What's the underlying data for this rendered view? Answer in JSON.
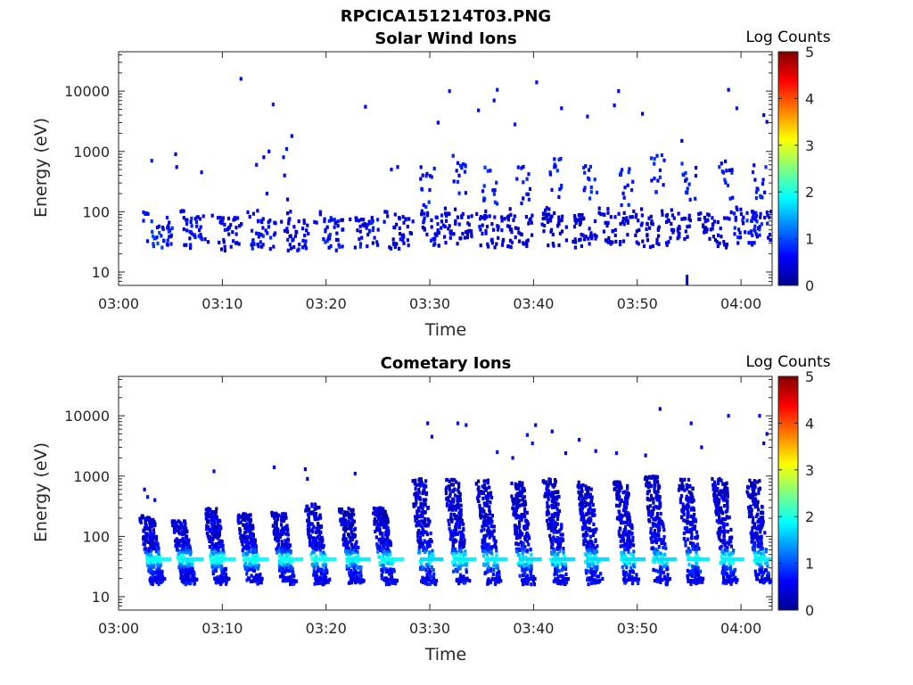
{
  "figure_title": "RPCICA151214T03.PNG",
  "chart_data": [
    {
      "type": "heatmap",
      "title": "Solar Wind Ions",
      "xlabel": "Time",
      "ylabel": "Energy (eV)",
      "x_ticks": [
        "03:00",
        "03:10",
        "03:20",
        "03:30",
        "03:40",
        "03:50",
        "04:00"
      ],
      "x_tick_minutes": [
        0,
        10,
        20,
        30,
        40,
        50,
        60
      ],
      "xlim_minutes": [
        0,
        63
      ],
      "y_scale": "log",
      "ylim": [
        6,
        45000
      ],
      "y_ticks": [
        "10",
        "100",
        "1000",
        "10000"
      ],
      "y_tick_values": [
        10,
        100,
        1000,
        10000
      ],
      "colorbar": {
        "label": "Log Counts",
        "range": [
          0,
          5
        ],
        "ticks": [
          "0",
          "1",
          "2",
          "3",
          "4",
          "5"
        ],
        "colormap": "jet"
      },
      "bursts": [
        {
          "t": 3.5,
          "e": 40,
          "l": 1.0
        },
        {
          "t": 7.0,
          "e": 42,
          "l": 0.8
        },
        {
          "t": 10.2,
          "e": 40,
          "l": 0.7
        },
        {
          "t": 13.5,
          "e": 42,
          "l": 0.8
        },
        {
          "t": 16.7,
          "e": 40,
          "l": 0.7
        },
        {
          "t": 20.0,
          "e": 40,
          "l": 0.8
        },
        {
          "t": 23.5,
          "e": 45,
          "l": 0.8
        },
        {
          "t": 26.8,
          "e": 42,
          "l": 0.7
        },
        {
          "t": 30.0,
          "e": 45,
          "l": 0.7
        },
        {
          "t": 32.5,
          "e": 48,
          "l": 0.6
        },
        {
          "t": 35.5,
          "e": 45,
          "l": 0.7
        },
        {
          "t": 38.2,
          "e": 45,
          "l": 0.6
        },
        {
          "t": 41.5,
          "e": 48,
          "l": 0.6
        },
        {
          "t": 44.5,
          "e": 45,
          "l": 0.6
        },
        {
          "t": 47.5,
          "e": 48,
          "l": 0.6
        },
        {
          "t": 50.5,
          "e": 45,
          "l": 0.6
        },
        {
          "t": 53.5,
          "e": 48,
          "l": 0.6
        },
        {
          "t": 57.0,
          "e": 45,
          "l": 0.6
        },
        {
          "t": 60.0,
          "e": 48,
          "l": 0.8
        },
        {
          "t": 62.0,
          "e": 50,
          "l": 0.8
        }
      ],
      "high_energy_bursts": [
        {
          "t": 29.8,
          "e": 250
        },
        {
          "t": 32.8,
          "e": 400
        },
        {
          "t": 35.8,
          "e": 300
        },
        {
          "t": 39.0,
          "e": 250
        },
        {
          "t": 42.0,
          "e": 350
        },
        {
          "t": 45.5,
          "e": 300
        },
        {
          "t": 49.0,
          "e": 250
        },
        {
          "t": 52.0,
          "e": 400
        },
        {
          "t": 55.0,
          "e": 300
        },
        {
          "t": 58.5,
          "e": 350
        },
        {
          "t": 61.8,
          "e": 300
        }
      ],
      "scatter_points": [
        {
          "t": 3.2,
          "e": 700
        },
        {
          "t": 5.5,
          "e": 900
        },
        {
          "t": 5.6,
          "e": 550
        },
        {
          "t": 8.0,
          "e": 450
        },
        {
          "t": 11.8,
          "e": 16000
        },
        {
          "t": 13.3,
          "e": 600
        },
        {
          "t": 14.0,
          "e": 800
        },
        {
          "t": 14.5,
          "e": 1000
        },
        {
          "t": 14.9,
          "e": 6000
        },
        {
          "t": 14.3,
          "e": 200
        },
        {
          "t": 16.2,
          "e": 1100
        },
        {
          "t": 15.9,
          "e": 800
        },
        {
          "t": 16.7,
          "e": 1800
        },
        {
          "t": 16.0,
          "e": 400
        },
        {
          "t": 16.3,
          "e": 160
        },
        {
          "t": 23.8,
          "e": 5500
        },
        {
          "t": 26.3,
          "e": 500
        },
        {
          "t": 26.9,
          "e": 550
        },
        {
          "t": 30.8,
          "e": 3000
        },
        {
          "t": 31.9,
          "e": 10000
        },
        {
          "t": 34.7,
          "e": 4800
        },
        {
          "t": 36.2,
          "e": 7000
        },
        {
          "t": 36.5,
          "e": 10500
        },
        {
          "t": 38.2,
          "e": 2800
        },
        {
          "t": 40.3,
          "e": 14000
        },
        {
          "t": 42.7,
          "e": 5200
        },
        {
          "t": 45.2,
          "e": 3800
        },
        {
          "t": 47.8,
          "e": 5800
        },
        {
          "t": 48.2,
          "e": 10000
        },
        {
          "t": 50.5,
          "e": 4200
        },
        {
          "t": 54.3,
          "e": 1500
        },
        {
          "t": 58.8,
          "e": 10500
        },
        {
          "t": 59.6,
          "e": 5200
        },
        {
          "t": 62.2,
          "e": 4000
        },
        {
          "t": 62.5,
          "e": 3100
        },
        {
          "t": 54.8,
          "e": 9
        }
      ]
    },
    {
      "type": "heatmap",
      "title": "Cometary Ions",
      "xlabel": "Time",
      "ylabel": "Energy (eV)",
      "x_ticks": [
        "03:00",
        "03:10",
        "03:20",
        "03:30",
        "03:40",
        "03:50",
        "04:00"
      ],
      "x_tick_minutes": [
        0,
        10,
        20,
        30,
        40,
        50,
        60
      ],
      "xlim_minutes": [
        0,
        63
      ],
      "y_scale": "log",
      "ylim": [
        6,
        45000
      ],
      "y_ticks": [
        "10",
        "100",
        "1000",
        "10000"
      ],
      "y_tick_values": [
        10,
        100,
        1000,
        10000
      ],
      "colorbar": {
        "label": "Log Counts",
        "range": [
          0,
          5
        ],
        "ticks": [
          "0",
          "1",
          "2",
          "3",
          "4",
          "5"
        ],
        "colormap": "jet"
      },
      "bursts": [
        {
          "t": 3.6,
          "emax": 220,
          "l": 1.9
        },
        {
          "t": 6.7,
          "emax": 180,
          "l": 1.8
        },
        {
          "t": 9.8,
          "emax": 300,
          "l": 1.9
        },
        {
          "t": 13.0,
          "emax": 250,
          "l": 1.9
        },
        {
          "t": 16.3,
          "emax": 250,
          "l": 1.9
        },
        {
          "t": 19.5,
          "emax": 350,
          "l": 1.9
        },
        {
          "t": 22.8,
          "emax": 300,
          "l": 1.8
        },
        {
          "t": 26.0,
          "emax": 300,
          "l": 1.9
        },
        {
          "t": 29.8,
          "emax": 900,
          "l": 1.7
        },
        {
          "t": 33.0,
          "emax": 900,
          "l": 1.8
        },
        {
          "t": 36.0,
          "emax": 900,
          "l": 1.8
        },
        {
          "t": 39.3,
          "emax": 800,
          "l": 1.7
        },
        {
          "t": 42.5,
          "emax": 900,
          "l": 1.7
        },
        {
          "t": 45.8,
          "emax": 800,
          "l": 1.7
        },
        {
          "t": 49.3,
          "emax": 800,
          "l": 1.7
        },
        {
          "t": 52.3,
          "emax": 1000,
          "l": 1.7
        },
        {
          "t": 55.5,
          "emax": 900,
          "l": 1.8
        },
        {
          "t": 58.8,
          "emax": 900,
          "l": 1.8
        },
        {
          "t": 62.0,
          "emax": 900,
          "l": 1.8
        }
      ],
      "scatter_points": [
        {
          "t": 2.5,
          "e": 600
        },
        {
          "t": 2.8,
          "e": 450
        },
        {
          "t": 3.5,
          "e": 400
        },
        {
          "t": 9.2,
          "e": 1200
        },
        {
          "t": 15.0,
          "e": 1400
        },
        {
          "t": 18.0,
          "e": 1300
        },
        {
          "t": 18.2,
          "e": 900
        },
        {
          "t": 22.8,
          "e": 1100
        },
        {
          "t": 29.8,
          "e": 7500
        },
        {
          "t": 30.2,
          "e": 4500
        },
        {
          "t": 32.7,
          "e": 7500
        },
        {
          "t": 33.5,
          "e": 7000
        },
        {
          "t": 36.5,
          "e": 2500
        },
        {
          "t": 38.0,
          "e": 2000
        },
        {
          "t": 39.4,
          "e": 4800
        },
        {
          "t": 39.9,
          "e": 3500
        },
        {
          "t": 40.2,
          "e": 7000
        },
        {
          "t": 41.8,
          "e": 5500
        },
        {
          "t": 43.1,
          "e": 2400
        },
        {
          "t": 44.4,
          "e": 4000
        },
        {
          "t": 46.0,
          "e": 2600
        },
        {
          "t": 48.0,
          "e": 2400
        },
        {
          "t": 50.8,
          "e": 2200
        },
        {
          "t": 52.2,
          "e": 13000
        },
        {
          "t": 55.2,
          "e": 7500
        },
        {
          "t": 56.2,
          "e": 3000
        },
        {
          "t": 58.8,
          "e": 10000
        },
        {
          "t": 61.8,
          "e": 10000
        },
        {
          "t": 62.5,
          "e": 5000
        },
        {
          "t": 62.2,
          "e": 3500
        }
      ]
    }
  ]
}
